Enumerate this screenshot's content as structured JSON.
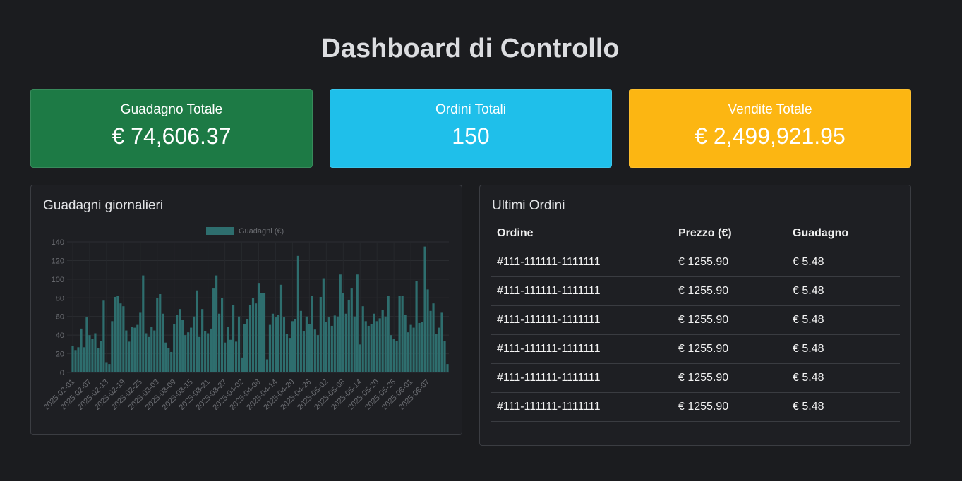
{
  "header": {
    "title": "Dashboard di Controllo"
  },
  "kpis": [
    {
      "label": "Guadagno Totale",
      "value": "€ 74,606.37",
      "color": "#1d7a45"
    },
    {
      "label": "Ordini Totali",
      "value": "150",
      "color": "#1fbfea"
    },
    {
      "label": "Vendite Totale",
      "value": "€ 2,499,921.95",
      "color": "#fcb612"
    }
  ],
  "chart_panel": {
    "title": "Guadagni giornalieri"
  },
  "chart_data": {
    "type": "bar",
    "title": "",
    "xlabel": "",
    "ylabel": "",
    "ylim": [
      0,
      140
    ],
    "yticks": [
      0,
      20,
      40,
      60,
      80,
      100,
      120,
      140
    ],
    "grid": true,
    "legend_position": "top",
    "bar_color": "#2e6e6e",
    "start_date": "2025-02-01",
    "tick_labels": [
      "2025-02-01",
      "2025-02-07",
      "2025-02-13",
      "2025-02-19",
      "2025-02-25",
      "2025-03-03",
      "2025-03-09",
      "2025-03-15",
      "2025-03-21",
      "2025-03-27",
      "2025-04-02",
      "2025-04-08",
      "2025-04-14",
      "2025-04-20",
      "2025-04-26",
      "2025-05-02",
      "2025-05-08",
      "2025-05-14",
      "2025-05-20",
      "2025-05-26",
      "2025-06-01",
      "2025-06-07"
    ],
    "series": [
      {
        "name": "Guadagni (€)",
        "values": [
          28,
          24,
          27,
          47,
          27,
          59,
          40,
          36,
          42,
          26,
          34,
          77,
          11,
          9,
          55,
          81,
          82,
          74,
          71,
          45,
          33,
          49,
          48,
          51,
          64,
          104,
          42,
          38,
          49,
          45,
          80,
          84,
          63,
          32,
          26,
          22,
          52,
          62,
          68,
          56,
          40,
          43,
          48,
          60,
          88,
          38,
          68,
          44,
          42,
          47,
          90,
          104,
          63,
          80,
          32,
          49,
          35,
          72,
          33,
          60,
          16,
          52,
          57,
          72,
          80,
          74,
          96,
          85,
          85,
          14,
          51,
          63,
          59,
          62,
          94,
          59,
          41,
          37,
          55,
          57,
          125,
          66,
          44,
          60,
          52,
          82,
          46,
          40,
          81,
          101,
          54,
          59,
          50,
          61,
          60,
          105,
          85,
          63,
          78,
          90,
          60,
          105,
          30,
          71,
          55,
          50,
          52,
          63,
          55,
          58,
          67,
          60,
          82,
          40,
          36,
          34,
          82,
          82,
          62,
          43,
          51,
          48,
          98,
          53,
          54,
          135,
          89,
          66,
          74,
          41,
          48,
          64,
          34,
          9
        ]
      }
    ]
  },
  "orders_panel": {
    "title": "Ultimi Ordini",
    "columns": [
      "Ordine",
      "Prezzo (€)",
      "Guadagno"
    ],
    "rows": [
      [
        "#111-111111-1111111",
        "€ 1255.90",
        "€ 5.48"
      ],
      [
        "#111-111111-1111111",
        "€ 1255.90",
        "€ 5.48"
      ],
      [
        "#111-111111-1111111",
        "€ 1255.90",
        "€ 5.48"
      ],
      [
        "#111-111111-1111111",
        "€ 1255.90",
        "€ 5.48"
      ],
      [
        "#111-111111-1111111",
        "€ 1255.90",
        "€ 5.48"
      ],
      [
        "#111-111111-1111111",
        "€ 1255.90",
        "€ 5.48"
      ]
    ]
  }
}
